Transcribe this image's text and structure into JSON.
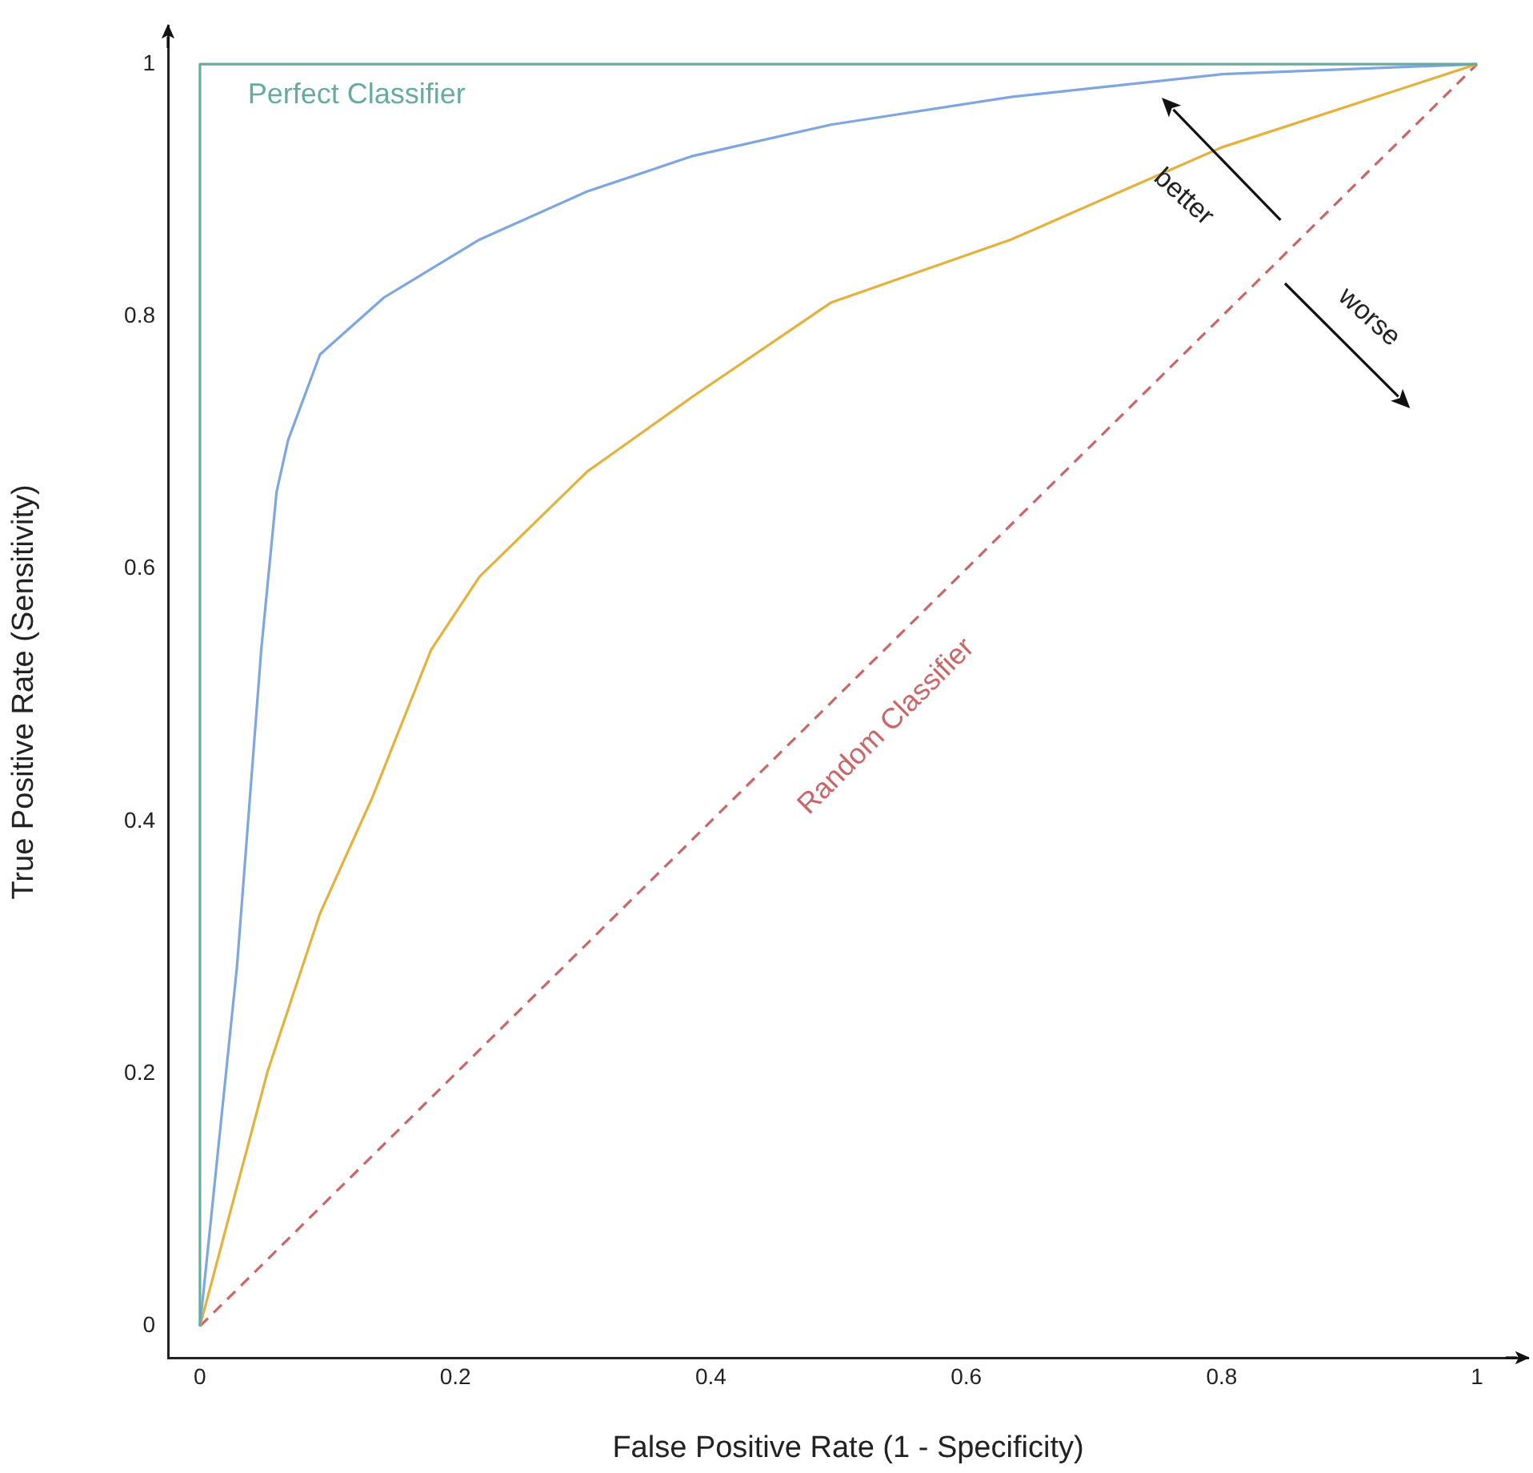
{
  "chart_data": {
    "type": "line",
    "xlabel": "False Positive Rate (1 - Specificity)",
    "ylabel": "True Positive Rate (Sensitivity)",
    "xlim": [
      -0.025,
      1.04
    ],
    "ylim": [
      -0.025,
      1.03
    ],
    "xticks": [
      0,
      0.2,
      0.4,
      0.6,
      0.8,
      1
    ],
    "yticks": [
      0,
      0.2,
      0.4,
      0.6,
      0.8,
      1
    ],
    "series": [
      {
        "name": "Perfect Classifier",
        "color": "#67ab9f",
        "x": [
          0,
          0,
          1
        ],
        "values": [
          0,
          1,
          1
        ]
      },
      {
        "color": "#7ea6e0",
        "x": [
          0,
          0.029,
          0.048,
          0.06,
          0.069,
          0.094,
          0.144,
          0.219,
          0.303,
          0.385,
          0.494,
          0.635,
          0.8,
          1
        ],
        "values": [
          0,
          0.285,
          0.536,
          0.661,
          0.702,
          0.77,
          0.815,
          0.861,
          0.899,
          0.927,
          0.952,
          0.974,
          0.992,
          1
        ]
      },
      {
        "color": "#e6b13b",
        "x": [
          0,
          0.053,
          0.094,
          0.135,
          0.181,
          0.219,
          0.303,
          0.385,
          0.494,
          0.635,
          0.8,
          1
        ],
        "values": [
          0,
          0.202,
          0.327,
          0.419,
          0.536,
          0.594,
          0.677,
          0.736,
          0.811,
          0.861,
          0.934,
          1
        ]
      },
      {
        "name": "Random Classifier",
        "color": "#cc6666",
        "line_style": "dashed",
        "x": [
          0,
          1
        ],
        "values": [
          0,
          1
        ]
      }
    ],
    "annotations": [
      "better",
      "worse"
    ]
  }
}
